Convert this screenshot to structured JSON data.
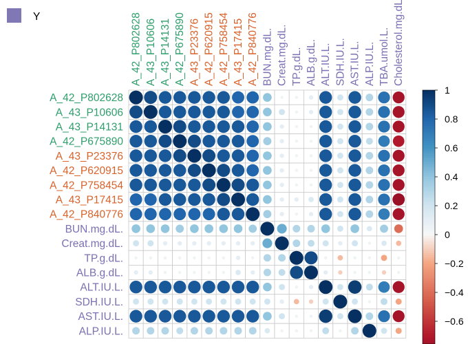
{
  "legend": {
    "label": "Y",
    "color": "#8078b4"
  },
  "colors": {
    "green": "#2e9e6b",
    "orange": "#d9622b",
    "purple": "#7a70b3"
  },
  "chart_data": {
    "type": "heatmap",
    "variant": "correlation-circles",
    "rows": [
      {
        "name": "A_42_P802628",
        "group": "green"
      },
      {
        "name": "A_43_P10606",
        "group": "green"
      },
      {
        "name": "A_43_P14131",
        "group": "green"
      },
      {
        "name": "A_42_P675890",
        "group": "green"
      },
      {
        "name": "A_43_P23376",
        "group": "orange"
      },
      {
        "name": "A_42_P620915",
        "group": "orange"
      },
      {
        "name": "A_42_P758454",
        "group": "orange"
      },
      {
        "name": "A_43_P17415",
        "group": "orange"
      },
      {
        "name": "A_42_P840776",
        "group": "orange"
      },
      {
        "name": "BUN.mg.dL.",
        "group": "purple"
      },
      {
        "name": "Creat.mg.dL.",
        "group": "purple"
      },
      {
        "name": "TP.g.dL.",
        "group": "purple"
      },
      {
        "name": "ALB.g.dL.",
        "group": "purple"
      },
      {
        "name": "ALT.IU.L.",
        "group": "purple"
      },
      {
        "name": "SDH.IU.L.",
        "group": "purple"
      },
      {
        "name": "AST.IU.L.",
        "group": "purple"
      },
      {
        "name": "ALP.IU.L.",
        "group": "purple"
      }
    ],
    "columns": [
      {
        "name": "A_42_P802628",
        "group": "green"
      },
      {
        "name": "A_43_P10606",
        "group": "green"
      },
      {
        "name": "A_43_P14131",
        "group": "green"
      },
      {
        "name": "A_42_P675890",
        "group": "green"
      },
      {
        "name": "A_43_P23376",
        "group": "orange"
      },
      {
        "name": "A_42_P620915",
        "group": "orange"
      },
      {
        "name": "A_42_P758454",
        "group": "orange"
      },
      {
        "name": "A_43_P17415",
        "group": "orange"
      },
      {
        "name": "A_42_P840776",
        "group": "orange"
      },
      {
        "name": "BUN.mg.dL.",
        "group": "purple"
      },
      {
        "name": "Creat.mg.dL.",
        "group": "purple"
      },
      {
        "name": "TP.g.dL.",
        "group": "purple"
      },
      {
        "name": "ALB.g.dL.",
        "group": "purple"
      },
      {
        "name": "ALT.IU.L.",
        "group": "purple"
      },
      {
        "name": "SDH.IU.L.",
        "group": "purple"
      },
      {
        "name": "AST.IU.L.",
        "group": "purple"
      },
      {
        "name": "ALP.IU.L.",
        "group": "purple"
      },
      {
        "name": "TBA.umol.L.",
        "group": "purple"
      },
      {
        "name": "Cholesterol.mg.dL.",
        "group": "purple"
      }
    ],
    "values": [
      [
        1.0,
        0.9,
        0.85,
        0.85,
        0.85,
        0.85,
        0.85,
        0.8,
        0.8,
        0.4,
        0.05,
        0.05,
        0.1,
        0.85,
        0.2,
        0.85,
        0.3,
        0.75,
        -0.75
      ],
      [
        0.9,
        1.0,
        0.85,
        0.85,
        0.85,
        0.85,
        0.85,
        0.8,
        0.8,
        0.4,
        0.2,
        0.05,
        0.1,
        0.85,
        0.2,
        0.85,
        0.3,
        0.75,
        -0.75
      ],
      [
        0.85,
        0.85,
        1.0,
        0.9,
        0.85,
        0.85,
        0.85,
        0.85,
        0.8,
        0.4,
        0.1,
        0.05,
        0.05,
        0.85,
        0.2,
        0.85,
        0.3,
        0.75,
        -0.75
      ],
      [
        0.85,
        0.85,
        0.9,
        1.0,
        0.9,
        0.85,
        0.85,
        0.85,
        0.8,
        0.35,
        0.1,
        0.05,
        0.05,
        0.85,
        0.2,
        0.85,
        0.25,
        0.7,
        -0.7
      ],
      [
        0.85,
        0.85,
        0.85,
        0.9,
        1.0,
        0.9,
        0.85,
        0.85,
        0.8,
        0.4,
        0.1,
        0.05,
        0.05,
        0.85,
        0.2,
        0.85,
        0.3,
        0.75,
        -0.75
      ],
      [
        0.85,
        0.85,
        0.85,
        0.85,
        0.9,
        1.0,
        0.9,
        0.85,
        0.8,
        0.4,
        0.1,
        0.05,
        0.05,
        0.85,
        0.2,
        0.85,
        0.3,
        0.75,
        -0.75
      ],
      [
        0.85,
        0.85,
        0.85,
        0.85,
        0.85,
        0.9,
        1.0,
        0.9,
        0.85,
        0.4,
        0.1,
        0.05,
        0.05,
        0.85,
        0.2,
        0.85,
        0.3,
        0.75,
        -0.75
      ],
      [
        0.8,
        0.8,
        0.85,
        0.85,
        0.85,
        0.85,
        0.9,
        1.0,
        0.85,
        0.4,
        0.1,
        0.1,
        0.15,
        0.85,
        0.2,
        0.85,
        0.3,
        0.75,
        -0.8
      ],
      [
        0.8,
        0.8,
        0.8,
        0.8,
        0.8,
        0.8,
        0.85,
        0.85,
        1.0,
        0.35,
        0.1,
        0.05,
        0.1,
        0.85,
        0.2,
        0.85,
        0.3,
        0.7,
        -0.75
      ],
      [
        0.4,
        0.4,
        0.4,
        0.35,
        0.4,
        0.4,
        0.4,
        0.4,
        0.35,
        1.0,
        0.5,
        0.3,
        0.3,
        0.4,
        0.2,
        0.4,
        0.15,
        0.35,
        -0.4
      ],
      [
        0.2,
        0.2,
        0.1,
        0.1,
        0.1,
        0.1,
        0.1,
        0.1,
        0.1,
        0.5,
        1.0,
        0.3,
        0.25,
        0.2,
        0.1,
        0.2,
        0.05,
        0.15,
        -0.15
      ],
      [
        0.05,
        0.05,
        0.05,
        0.05,
        0.05,
        0.05,
        0.05,
        0.1,
        0.05,
        0.3,
        0.3,
        1.0,
        0.9,
        0.05,
        -0.15,
        0.05,
        0.05,
        -0.2,
        0.05
      ],
      [
        0.1,
        0.1,
        0.05,
        0.05,
        0.05,
        0.05,
        0.05,
        0.15,
        0.1,
        0.3,
        0.25,
        0.9,
        1.0,
        0.1,
        -0.1,
        0.05,
        0.05,
        -0.1,
        0.05
      ],
      [
        0.85,
        0.85,
        0.85,
        0.85,
        0.85,
        0.85,
        0.85,
        0.85,
        0.85,
        0.4,
        0.2,
        0.05,
        0.1,
        1.0,
        0.2,
        0.95,
        0.25,
        0.7,
        -0.75
      ],
      [
        0.2,
        0.2,
        0.2,
        0.2,
        0.2,
        0.2,
        0.2,
        0.2,
        0.2,
        0.2,
        0.1,
        -0.15,
        -0.1,
        0.2,
        1.0,
        0.2,
        0.05,
        0.25,
        -0.2
      ],
      [
        0.85,
        0.85,
        0.85,
        0.85,
        0.85,
        0.85,
        0.85,
        0.85,
        0.85,
        0.4,
        0.2,
        0.05,
        0.05,
        0.95,
        0.2,
        1.0,
        0.3,
        0.75,
        -0.75
      ],
      [
        0.3,
        0.3,
        0.3,
        0.25,
        0.3,
        0.3,
        0.3,
        0.3,
        0.3,
        0.15,
        0.05,
        0.05,
        0.05,
        0.25,
        0.05,
        0.3,
        1.0,
        0.2,
        -0.2
      ]
    ],
    "colorbar": {
      "range": [
        -0.7,
        1.0
      ],
      "ticks": [
        "1",
        "0.8",
        "0.6",
        "0.4",
        "0.2",
        "0",
        "−0.2",
        "−0.4",
        "−0.6"
      ],
      "tick_values": [
        1,
        0.8,
        0.6,
        0.4,
        0.2,
        0,
        -0.2,
        -0.4,
        -0.6
      ]
    }
  }
}
